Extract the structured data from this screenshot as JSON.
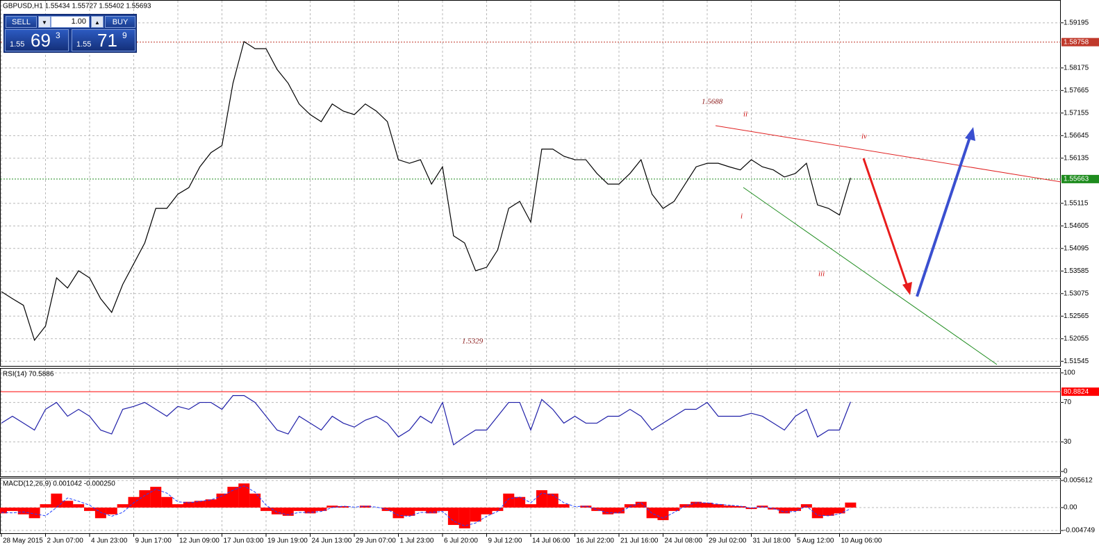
{
  "trade_panel": {
    "sell_label": "SELL",
    "buy_label": "BUY",
    "lot": "1.00",
    "sell_quote": {
      "prefix": "1.55",
      "big": "69",
      "sup": "3"
    },
    "buy_quote": {
      "prefix": "1.55",
      "big": "71",
      "sup": "9"
    }
  },
  "chart_data": [
    {
      "type": "line",
      "title": "GBPUSD,H1  1.55434 1.55727 1.55402 1.55693",
      "categories": [
        "28 May 2015",
        null,
        null,
        null,
        "2 Jun 07:00",
        null,
        null,
        null,
        "4 Jun 23:00",
        null,
        null,
        null,
        "9 Jun 17:00",
        null,
        null,
        null,
        "12 Jun 09:00",
        null,
        null,
        null,
        "17 Jun 03:00",
        null,
        null,
        null,
        "19 Jun 19:00",
        null,
        null,
        null,
        "24 Jun 13:00",
        null,
        null,
        null,
        "29 Jun 07:00",
        null,
        null,
        null,
        "1 Jul 23:00",
        null,
        null,
        null,
        "6 Jul 20:00",
        null,
        null,
        null,
        "9 Jul 12:00",
        null,
        null,
        null,
        "14 Jul 06:00",
        null,
        null,
        null,
        "16 Jul 22:00",
        null,
        null,
        null,
        "21 Jul 16:00",
        null,
        null,
        null,
        "24 Jul 08:00",
        null,
        null,
        null,
        "29 Jul 02:00",
        null,
        null,
        null,
        "31 Jul 18:00",
        null,
        null,
        null,
        "5 Aug 12:00",
        null,
        null,
        null,
        "10 Aug 06:00",
        null
      ],
      "values": [
        1.5312,
        1.5296,
        1.5281,
        1.5202,
        1.5234,
        1.5343,
        1.532,
        1.5359,
        1.5343,
        1.5296,
        1.5265,
        1.5328,
        1.5375,
        1.5422,
        1.55,
        1.55,
        1.5532,
        1.5547,
        1.5594,
        1.5626,
        1.5642,
        1.5783,
        1.5877,
        1.5861,
        1.5861,
        1.5814,
        1.5783,
        1.5736,
        1.5712,
        1.5696,
        1.5736,
        1.572,
        1.5712,
        1.5736,
        1.572,
        1.5696,
        1.561,
        1.5602,
        1.561,
        1.5555,
        1.5594,
        1.5438,
        1.5422,
        1.5359,
        1.5367,
        1.5406,
        1.55,
        1.5516,
        1.5469,
        1.5634,
        1.5634,
        1.5618,
        1.561,
        1.561,
        1.5579,
        1.5555,
        1.5555,
        1.5579,
        1.561,
        1.5532,
        1.55,
        1.5516,
        1.5555,
        1.5594,
        1.5602,
        1.5602,
        1.5594,
        1.5587,
        1.561,
        1.5594,
        1.5587,
        1.5571,
        1.5579,
        1.5602,
        1.5508,
        1.55,
        1.5485,
        1.5569
      ],
      "color": "#000000",
      "ylim": [
        1.5144,
        1.5971
      ],
      "yticks": [
        1.59195,
        1.58175,
        1.57665,
        1.57155,
        1.56645,
        1.56135,
        1.55115,
        1.54605,
        1.54095,
        1.53585,
        1.53075,
        1.52565,
        1.52055,
        1.51545
      ],
      "grid": true,
      "levels": [
        {
          "value": 1.58758,
          "color": "#c0392b",
          "style": "dotted"
        },
        {
          "value": 1.55663,
          "color": "#1e8c1e",
          "style": "dotted"
        }
      ],
      "annotations": [
        "1.5688",
        "ii",
        "iv",
        "i",
        "iii",
        "1.5329"
      ]
    },
    {
      "type": "line",
      "title": "RSI(14) 70.5886",
      "values": [
        49,
        56,
        49,
        42,
        63,
        70,
        56,
        63,
        56,
        42,
        38,
        63,
        66,
        70,
        63,
        56,
        66,
        63,
        70,
        70,
        63,
        77,
        77,
        70,
        56,
        42,
        38,
        56,
        49,
        42,
        56,
        49,
        45,
        52,
        56,
        49,
        35,
        42,
        56,
        49,
        70,
        27,
        35,
        42,
        42,
        56,
        70,
        70,
        42,
        73,
        63,
        49,
        56,
        49,
        49,
        56,
        56,
        63,
        56,
        42,
        49,
        56,
        63,
        63,
        70,
        56,
        56,
        56,
        59,
        56,
        49,
        42,
        56,
        63,
        35,
        42,
        42,
        70.6
      ],
      "color": "#1f1fa8",
      "ylim": [
        -4.9,
        104.9
      ],
      "yticks": [
        100,
        70,
        30,
        0
      ],
      "grid": true,
      "levels": [
        {
          "value": 80.8824,
          "color": "#ff0000",
          "style": "solid"
        }
      ]
    },
    {
      "type": "bar",
      "title": "MACD(12,26,9) 0.001042 -0.000250",
      "values": [
        -0.0012,
        -0.0007,
        -0.0014,
        -0.0022,
        0.0007,
        0.0029,
        0.0014,
        0.0007,
        -0.0007,
        -0.0022,
        -0.0014,
        0.0007,
        0.0022,
        0.0036,
        0.0043,
        0.0022,
        0.0007,
        0.0012,
        0.0014,
        0.0017,
        0.0029,
        0.0043,
        0.005,
        0.0029,
        -0.0007,
        -0.0014,
        -0.0017,
        -0.0007,
        -0.0012,
        -0.0007,
        0.0004,
        0.0003,
        0,
        0.0004,
        0,
        -0.0007,
        -0.0022,
        -0.0017,
        -0.0007,
        -0.0012,
        -0.0007,
        -0.0036,
        -0.0043,
        -0.0029,
        -0.0014,
        -0.0007,
        0.0029,
        0.0022,
        0.0007,
        0.0036,
        0.0029,
        0.0007,
        0,
        0.0004,
        -0.0007,
        -0.0014,
        -0.0012,
        0.0007,
        0.0012,
        -0.0022,
        -0.0026,
        -0.0007,
        0.0007,
        0.0012,
        0.001,
        0.0007,
        0.0004,
        0.0003,
        -0.0003,
        0.0004,
        -0.0004,
        -0.0012,
        -0.0007,
        0.0007,
        -0.0022,
        -0.0017,
        -0.0012,
        0.001042
      ],
      "color": "#ff0000",
      "signal_values": [
        -0.001,
        -0.0011,
        -0.0009,
        -0.0013,
        -0.0017,
        0.0,
        0.002,
        0.0013,
        0.0005,
        -0.001,
        -0.0018,
        -0.001,
        0.001,
        0.0025,
        0.0038,
        0.003,
        0.0012,
        0.001,
        0.0013,
        0.0016,
        0.0024,
        0.0036,
        0.0045,
        0.0032,
        0.0005,
        -0.001,
        -0.0015,
        -0.001,
        -0.001,
        -0.0008,
        0.0,
        0.0003,
        0.0001,
        0.0003,
        0.0001,
        -0.0004,
        -0.0016,
        -0.0018,
        -0.001,
        -0.001,
        -0.0008,
        -0.0028,
        -0.0038,
        -0.0032,
        -0.0018,
        -0.0008,
        0.0018,
        0.0022,
        0.001,
        0.003,
        0.0026,
        0.001,
        0.0002,
        0.0003,
        -0.0004,
        -0.0011,
        -0.0011,
        0.0002,
        0.001,
        -0.0012,
        -0.0022,
        -0.001,
        0.0003,
        0.001,
        0.001,
        0.0007,
        0.0005,
        0.0003,
        -0.0001,
        0.0002,
        -0.0002,
        -0.0009,
        -0.0008,
        0.0003,
        -0.0016,
        -0.0017,
        -0.0013,
        -0.00025
      ],
      "signal_color": "#1f3fff",
      "ylim": [
        -0.00532,
        0.00619
      ],
      "yticks": [
        0.005612,
        {
          "value": 0,
          "label": "0.00"
        },
        -0.004749
      ],
      "grid": true
    }
  ]
}
